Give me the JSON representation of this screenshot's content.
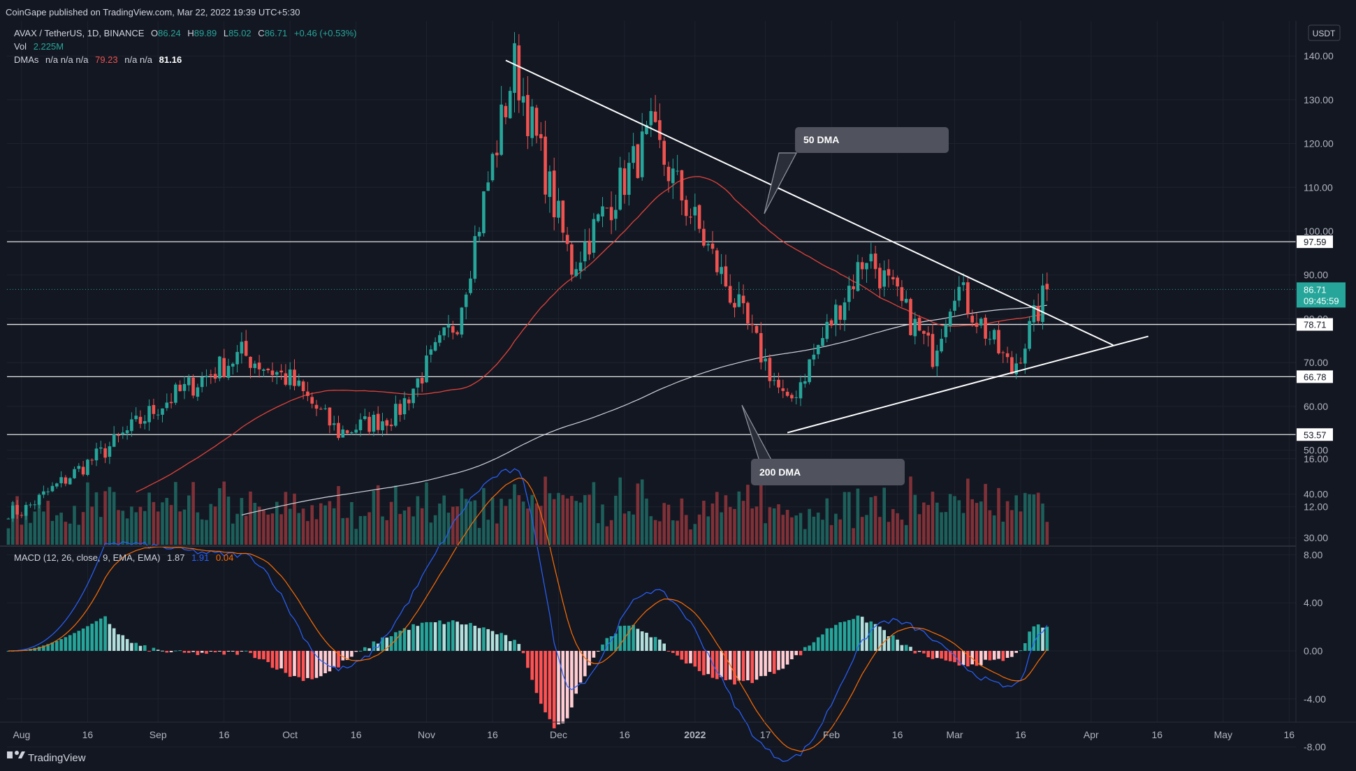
{
  "header": {
    "published": "CoinGape published on TradingView.com, Mar 22, 2022 19:39 UTC+5:30"
  },
  "legend": {
    "symbol": "AVAX / TetherUS, 1D, BINANCE",
    "open_label": "O",
    "open": "86.24",
    "high_label": "H",
    "high": "89.89",
    "low_label": "L",
    "low": "85.02",
    "close_label": "C",
    "close": "86.71",
    "change": "+0.46 (+0.53%)",
    "vol_label": "Vol",
    "vol": "2.225M",
    "dmas_label": "DMAs",
    "dmas_na": "n/a n/a n/a",
    "dma_50": "79.23",
    "dmas_na2": "n/a n/a",
    "dma_200": "81.16"
  },
  "macd_legend": {
    "label": "MACD (12, 26, close, 9, EMA, EMA)",
    "hist": "1.87",
    "macd": "1.91",
    "signal": "0.04"
  },
  "currency": "USDT",
  "footer": {
    "brand": "TradingView"
  },
  "colors": {
    "bg": "#131722",
    "up": "#26a69a",
    "down": "#ef5350",
    "grid": "#1e222d",
    "text": "#b2b5be",
    "price_badge": "#26a69a",
    "macd_line": "#2962ff",
    "signal_line": "#ff6d00",
    "ma50": "#e0433b",
    "ma200": "#d1d4dc"
  },
  "chart_data": [
    {
      "type": "candlestick",
      "title": "AVAX / TetherUS, 1D, BINANCE",
      "x_ticks": [
        "Aug",
        "16",
        "Sep",
        "16",
        "Oct",
        "16",
        "Nov",
        "16",
        "Dec",
        "16",
        "2022",
        "17",
        "Feb",
        "16",
        "Mar",
        "16",
        "Apr",
        "16",
        "May",
        "16"
      ],
      "y_ticks": [
        "140.00",
        "130.00",
        "120.00",
        "110.00",
        "100.00",
        "90.00",
        "80.00",
        "70.00",
        "60.00",
        "50.00",
        "40.00",
        "30.00"
      ],
      "ylim": [
        28,
        146
      ],
      "last_price": "86.71",
      "countdown": "09:45:59",
      "support_resistance": [
        {
          "label": "97.59",
          "value": 97.59
        },
        {
          "label": "78.71",
          "value": 78.71
        },
        {
          "label": "66.78",
          "value": 66.78
        },
        {
          "label": "53.57",
          "value": 53.57
        }
      ],
      "annotations": [
        {
          "text": "50 DMA"
        },
        {
          "text": "200 DMA"
        }
      ],
      "key_closes": [
        {
          "date": "Aug 1",
          "close": 36
        },
        {
          "date": "Aug 20",
          "close": 50
        },
        {
          "date": "Sep 1",
          "close": 60
        },
        {
          "date": "Sep 20",
          "close": 72
        },
        {
          "date": "Oct 1",
          "close": 66
        },
        {
          "date": "Oct 12",
          "close": 54
        },
        {
          "date": "Oct 25",
          "close": 58
        },
        {
          "date": "Nov 8",
          "close": 80
        },
        {
          "date": "Nov 21",
          "close": 138
        },
        {
          "date": "Dec 4",
          "close": 92
        },
        {
          "date": "Dec 22",
          "close": 122
        },
        {
          "date": "Jan 6",
          "close": 92
        },
        {
          "date": "Jan 22",
          "close": 60
        },
        {
          "date": "Feb 9",
          "close": 95
        },
        {
          "date": "Feb 24",
          "close": 72
        },
        {
          "date": "Mar 1",
          "close": 88
        },
        {
          "date": "Mar 14",
          "close": 68
        },
        {
          "date": "Mar 22",
          "close": 86.71
        }
      ]
    },
    {
      "type": "macd",
      "y_ticks": [
        "16.00",
        "12.00",
        "8.00",
        "4.00",
        "0.00",
        "-4.00",
        "-8.00"
      ],
      "ylim": [
        -11.5,
        17.5
      ],
      "key_values": [
        {
          "date": "Aug 20",
          "macd": 9
        },
        {
          "date": "Sep 20",
          "macd": 8
        },
        {
          "date": "Oct 12",
          "macd": -1.5
        },
        {
          "date": "Nov 21",
          "macd": 15
        },
        {
          "date": "Dec 4",
          "macd": -3
        },
        {
          "date": "Dec 22",
          "macd": 5
        },
        {
          "date": "Jan 22",
          "macd": -9
        },
        {
          "date": "Feb 14",
          "macd": 2.5
        },
        {
          "date": "Mar 14",
          "macd": -3
        },
        {
          "date": "Mar 22",
          "macd": 1.91
        }
      ]
    }
  ]
}
